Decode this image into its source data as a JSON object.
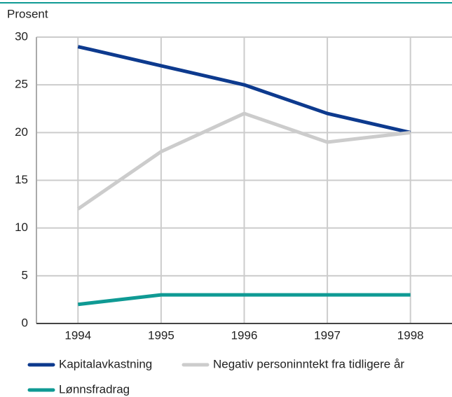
{
  "chart_data": {
    "type": "line",
    "y_label": "Prosent",
    "x": [
      1994,
      1995,
      1996,
      1997,
      1998
    ],
    "xlim": [
      1993.5,
      1998.5
    ],
    "xticks": [
      1994,
      1995,
      1996,
      1997,
      1998
    ],
    "ylim": [
      0,
      30
    ],
    "yticks": [
      0,
      5,
      10,
      15,
      20,
      25,
      30
    ],
    "grid": true,
    "series": [
      {
        "name": "Kapitalavkastning",
        "color": "#0d3a8e",
        "values": [
          29,
          27,
          25,
          22,
          20
        ]
      },
      {
        "name": "Negativ personinntekt fra tidligere år",
        "color": "#cccccc",
        "values": [
          12,
          18,
          22,
          19,
          20
        ]
      },
      {
        "name": "Lønnsfradrag",
        "color": "#0f9a94",
        "values": [
          2,
          3,
          3,
          3,
          3
        ]
      }
    ]
  }
}
